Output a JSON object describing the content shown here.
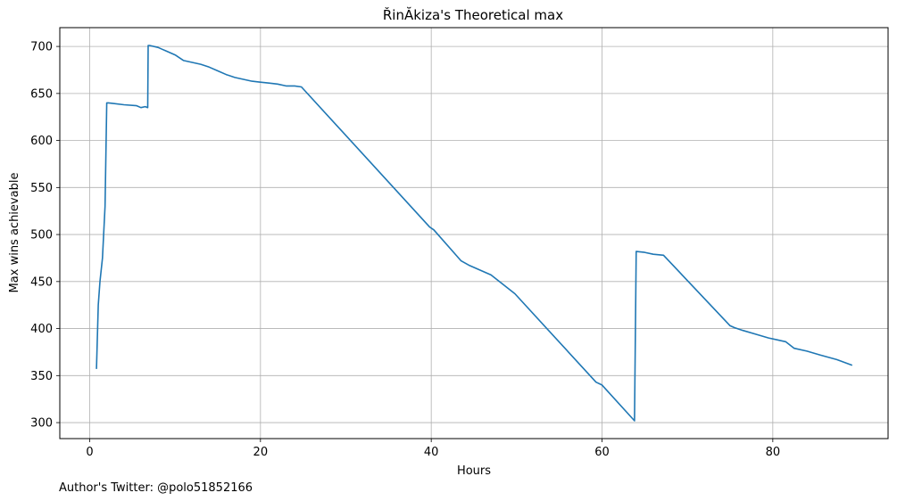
{
  "chart_data": {
    "type": "line",
    "title": "ŘinĂkiza's Theoretical max",
    "xlabel": "Hours",
    "ylabel": "Max wins achievable",
    "xlim": [
      -3.5,
      93.5
    ],
    "ylim": [
      283,
      720
    ],
    "xticks": [
      0,
      20,
      40,
      60,
      80
    ],
    "yticks": [
      300,
      350,
      400,
      450,
      500,
      550,
      600,
      650,
      700
    ],
    "grid": true,
    "line_color": "#1f77b4",
    "series": [
      {
        "x": [
          0.8,
          1.0,
          1.2,
          1.5,
          1.8,
          2.0,
          2.2,
          4.0,
          5.5,
          6.0,
          6.5,
          6.8,
          6.85,
          7.0,
          8.0,
          8.5,
          9.0,
          10.0,
          11.0,
          12.0,
          13.0,
          14.0,
          15.0,
          16.0,
          17.0,
          18.0,
          19.0,
          20.0,
          21.0,
          22.0,
          23.0,
          24.0,
          24.8,
          39.8,
          40.3,
          43.5,
          44.5,
          47.0,
          49.8,
          59.3,
          60.0,
          63.8,
          64.0,
          65.0,
          66.0,
          67.2,
          75.0,
          75.5,
          76.5,
          78.0,
          79.5,
          80.5,
          81.5,
          82.5,
          84.0,
          85.5,
          87.5,
          89.3
        ],
        "y": [
          357,
          425,
          450,
          475,
          530,
          640,
          640,
          638,
          637,
          635,
          636,
          635,
          701,
          701,
          699,
          697,
          695,
          691,
          685,
          683,
          681,
          678,
          674,
          670,
          667,
          665,
          663,
          662,
          661,
          660,
          658,
          658,
          657,
          508,
          505,
          472,
          467,
          457,
          437,
          343,
          340,
          302,
          482,
          481,
          479,
          478,
          403,
          401,
          398,
          394,
          390,
          388,
          386,
          379,
          376,
          372,
          367,
          361
        ]
      }
    ]
  },
  "footer": {
    "text": "Author's Twitter: @polo51852166"
  }
}
